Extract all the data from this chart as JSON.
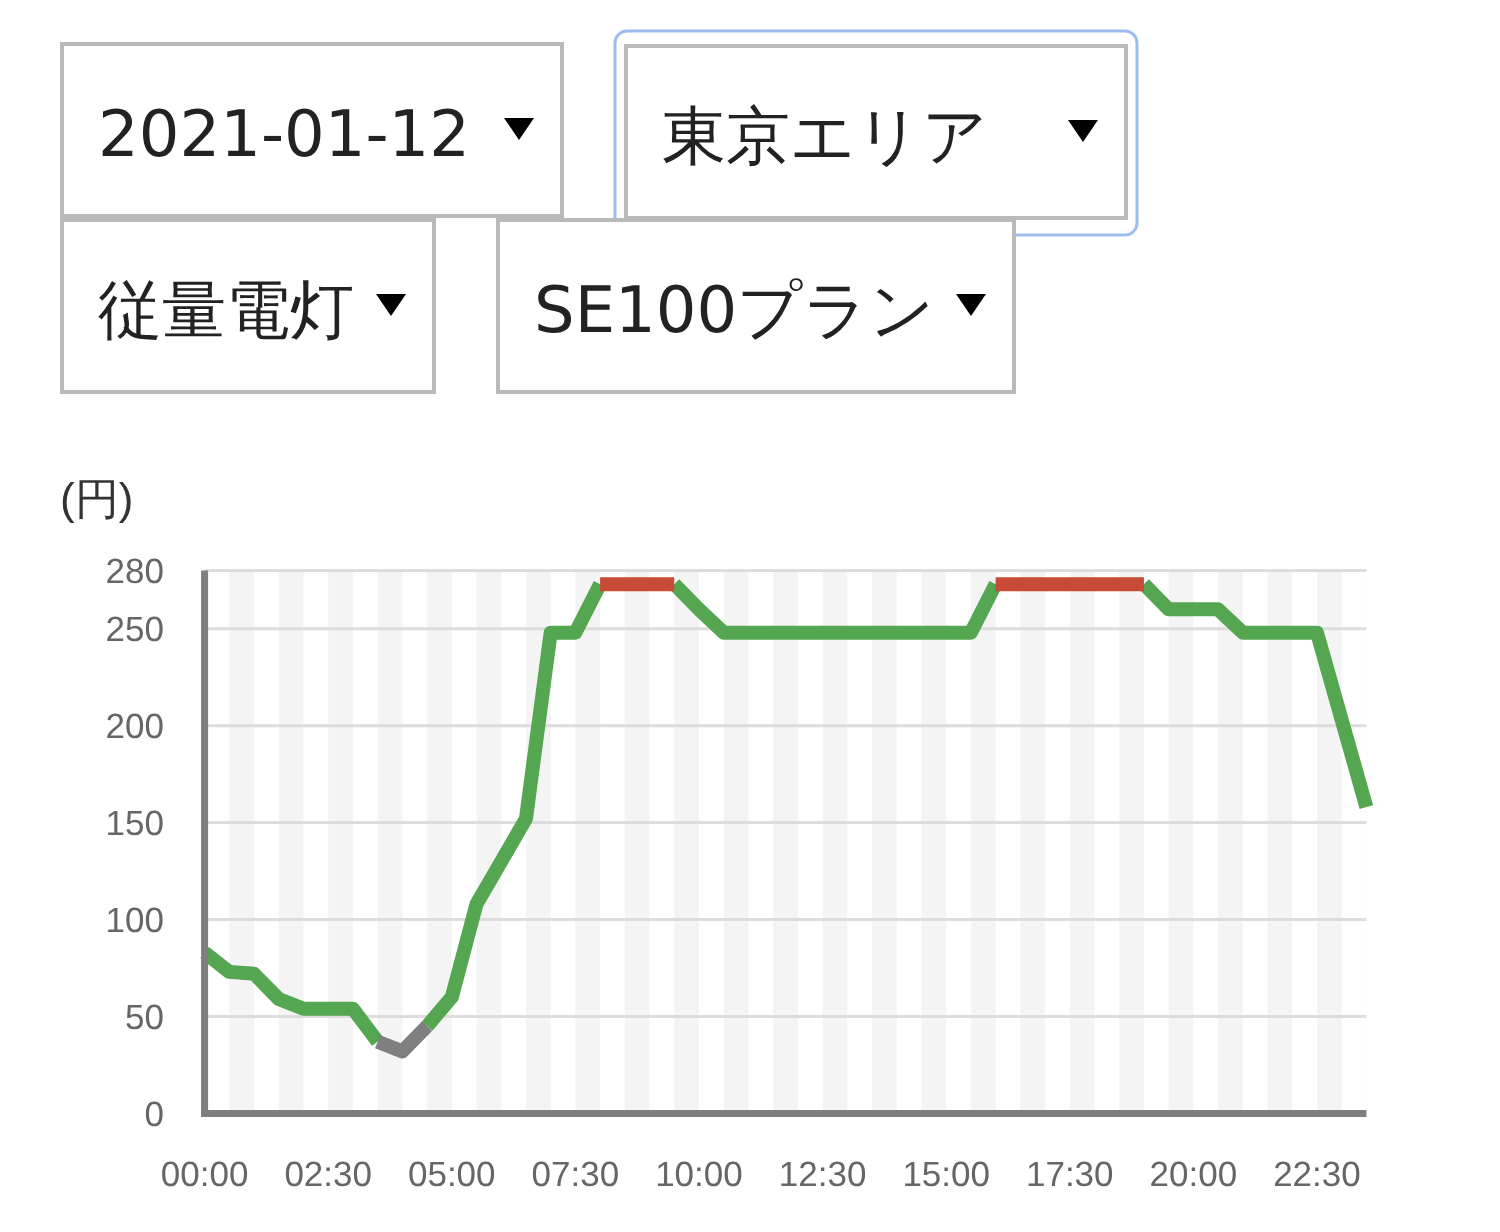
{
  "chart_data": {
    "type": "line",
    "ylabel": "(円)",
    "annotations": [
      "2021-01-12",
      "東京エリア",
      "従量電灯",
      "SE100プラン"
    ],
    "categories": [
      "00:00",
      null,
      null,
      null,
      null,
      "02:30",
      null,
      null,
      null,
      null,
      "05:00",
      null,
      null,
      null,
      null,
      "07:30",
      null,
      null,
      null,
      null,
      "10:00",
      null,
      null,
      null,
      null,
      "12:30",
      null,
      null,
      null,
      null,
      "15:00",
      null,
      null,
      null,
      null,
      "17:30",
      null,
      null,
      null,
      null,
      "20:00",
      null,
      null,
      null,
      null,
      "22:30",
      null,
      null
    ],
    "ylim": [
      0,
      280
    ],
    "yticks": [
      0,
      50,
      100,
      150,
      200,
      250,
      280
    ],
    "grid": true,
    "series": [
      {
        "color": "#54a650",
        "values": [
          83,
          73,
          72,
          59,
          54,
          54,
          54,
          37,
          null,
          45,
          60,
          108,
          130,
          152,
          248,
          248,
          273,
          null,
          null,
          273,
          260,
          248,
          248,
          248,
          248,
          248,
          248,
          248,
          248,
          248,
          248,
          248,
          273,
          null,
          null,
          null,
          null,
          null,
          273,
          260,
          260,
          260,
          248,
          248,
          248,
          248,
          203,
          158
        ]
      },
      {
        "color": "#7f7f7f",
        "values": [
          null,
          null,
          null,
          null,
          null,
          null,
          null,
          37,
          32,
          45,
          null,
          null,
          null,
          null,
          null,
          null,
          null,
          null,
          null,
          null,
          null,
          null,
          null,
          null,
          null,
          null,
          null,
          null,
          null,
          null,
          null,
          null,
          null,
          null,
          null,
          null,
          null,
          null,
          null,
          null,
          null,
          null,
          null,
          null,
          null,
          null,
          null,
          null
        ]
      },
      {
        "color": "#c84b37",
        "values": [
          null,
          null,
          null,
          null,
          null,
          null,
          null,
          null,
          null,
          null,
          null,
          null,
          null,
          null,
          null,
          null,
          273,
          273,
          273,
          273,
          null,
          null,
          null,
          null,
          null,
          null,
          null,
          null,
          null,
          null,
          null,
          null,
          273,
          273,
          273,
          273,
          273,
          273,
          273,
          null,
          null,
          null,
          null,
          null,
          null,
          null,
          null,
          null
        ]
      }
    ]
  }
}
